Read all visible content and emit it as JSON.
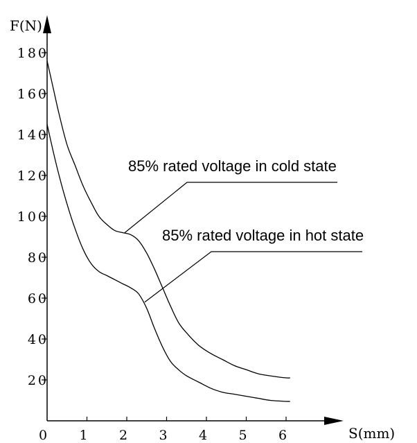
{
  "chart_data": {
    "type": "line",
    "title": "",
    "xlabel": "S(mm)",
    "ylabel": "F(N)",
    "xlim": [
      0,
      6.5
    ],
    "ylim": [
      0,
      185
    ],
    "x_ticks": [
      "0",
      "1",
      "2",
      "3",
      "4",
      "5",
      "6"
    ],
    "y_ticks": [
      "20",
      "40",
      "60",
      "80",
      "100",
      "120",
      "140",
      "160",
      "180"
    ],
    "grid": false,
    "series": [
      {
        "x": [
          0,
          0.15,
          0.3,
          0.5,
          0.7,
          0.9,
          1.1,
          1.3,
          1.5,
          1.7,
          1.9,
          2.1,
          2.3,
          2.5,
          2.7,
          2.9,
          3.1,
          3.3,
          3.5,
          3.8,
          4.1,
          4.4,
          4.7,
          5.0,
          5.3,
          5.6,
          6.0,
          6.1
        ],
        "values": [
          176,
          163,
          150,
          135,
          125,
          115,
          107,
          100,
          96,
          93,
          92,
          91,
          88,
          82,
          74,
          65,
          56,
          48,
          43,
          37,
          33,
          30,
          27,
          25,
          23,
          22,
          21,
          21
        ]
      },
      {
        "x": [
          0,
          0.15,
          0.3,
          0.5,
          0.7,
          0.9,
          1.1,
          1.3,
          1.5,
          1.7,
          1.9,
          2.1,
          2.3,
          2.5,
          2.7,
          2.9,
          3.1,
          3.3,
          3.5,
          3.8,
          4.1,
          4.4,
          4.7,
          5.0,
          5.3,
          5.6,
          6.0,
          6.1
        ],
        "values": [
          145,
          132,
          120,
          106,
          94,
          84,
          77,
          73,
          71,
          69,
          67,
          65,
          62,
          55,
          45,
          36,
          29,
          25,
          22,
          19,
          16,
          14,
          13,
          12,
          11,
          10,
          9.5,
          9.5
        ]
      }
    ],
    "annotations": [
      {
        "text": "85% rated voltage in cold state",
        "series_index": 0,
        "point": [
          1.95,
          92
        ]
      },
      {
        "text": "85% rated voltage in hot state",
        "series_index": 1,
        "point": [
          2.45,
          58
        ]
      }
    ]
  }
}
